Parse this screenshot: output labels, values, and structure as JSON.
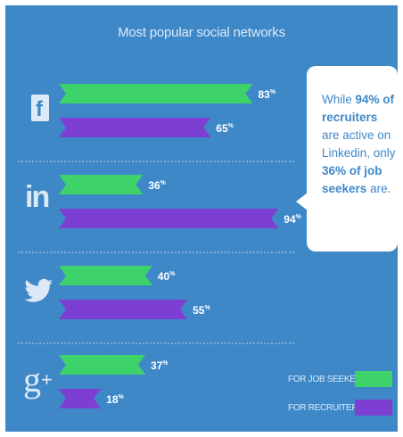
{
  "chart_data": {
    "type": "bar",
    "orientation": "horizontal",
    "title": "Most popular social networks",
    "categories": [
      "Facebook",
      "LinkedIn",
      "Twitter",
      "Google+"
    ],
    "series": [
      {
        "name": "FOR JOB SEEKERS",
        "color": "#3ed26a",
        "values": [
          83,
          36,
          40,
          37
        ]
      },
      {
        "name": "FOR RECRUITERS",
        "color": "#7d3fd1",
        "values": [
          65,
          94,
          55,
          18
        ]
      }
    ],
    "value_suffix": "%",
    "xlim": [
      0,
      100
    ],
    "legend": "bottom-right"
  },
  "icons": [
    "facebook-icon",
    "linkedin-icon",
    "twitter-icon",
    "google-plus-icon"
  ],
  "callout": {
    "p1": "While ",
    "v1": "94%",
    "p2": " of recruiters",
    "p3": " are active on Linkedin, only ",
    "v2": "36%",
    "p4": " of job seekers",
    "p5": " are."
  }
}
